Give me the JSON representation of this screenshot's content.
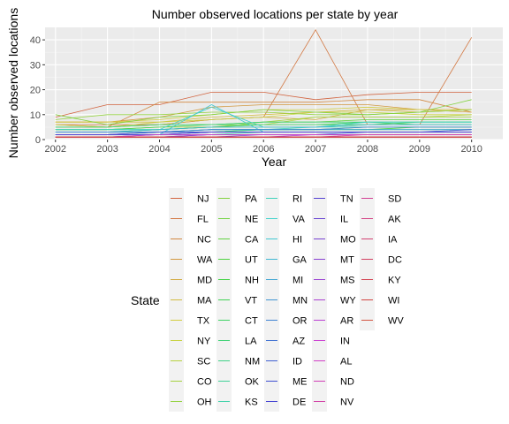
{
  "chart_data": {
    "type": "line",
    "title": "Number observed locations per state by year",
    "xlabel": "Year",
    "ylabel": "Number observed locations",
    "x": [
      2002,
      2003,
      2004,
      2005,
      2006,
      2007,
      2008,
      2009,
      2010
    ],
    "xlim": [
      2001.8,
      2010.6
    ],
    "ylim": [
      0,
      45
    ],
    "yticks": [
      0,
      10,
      20,
      30,
      40
    ],
    "grid": true,
    "legend": {
      "title": "State",
      "placement": "bottom",
      "entries": [
        "NJ",
        "FL",
        "NC",
        "WA",
        "MD",
        "MA",
        "TX",
        "NY",
        "SC",
        "CO",
        "OH",
        "PA",
        "NE",
        "CA",
        "UT",
        "NH",
        "VT",
        "CT",
        "LA",
        "NM",
        "OK",
        "KS",
        "RI",
        "VA",
        "HI",
        "GA",
        "MI",
        "MN",
        "OR",
        "AZ",
        "ID",
        "ME",
        "DE",
        "TN",
        "IL",
        "MO",
        "MT",
        "MS",
        "WY",
        "AR",
        "IN",
        "AL",
        "ND",
        "NV",
        "SD",
        "AK",
        "IA",
        "DC",
        "KY",
        "WI",
        "WV"
      ]
    },
    "series": [
      {
        "name": "NJ",
        "values": [
          9,
          14,
          14,
          19,
          19,
          16,
          18,
          19,
          19
        ]
      },
      {
        "name": "FL",
        "values": [
          6,
          6,
          6,
          8,
          9,
          44,
          6,
          6,
          41
        ]
      },
      {
        "name": "NC",
        "values": [
          6,
          5,
          15,
          15,
          15,
          15,
          16,
          16,
          11
        ]
      },
      {
        "name": "WA",
        "values": [
          7,
          7,
          9,
          13,
          14,
          14,
          14,
          12,
          12
        ]
      },
      {
        "name": "MD",
        "values": [
          5,
          5,
          6,
          8,
          9,
          8,
          12,
          12,
          11
        ]
      },
      {
        "name": "MA",
        "values": [
          7,
          7,
          7,
          9,
          10,
          11,
          12,
          11,
          12
        ]
      },
      {
        "name": "TX",
        "values": [
          7,
          7,
          8,
          10,
          12,
          12,
          13,
          12,
          12
        ]
      },
      {
        "name": "NY",
        "values": [
          6,
          5,
          7,
          8,
          9,
          11,
          11,
          10,
          10
        ]
      },
      {
        "name": "SC",
        "values": [
          3,
          3,
          4,
          5,
          6,
          9,
          9,
          9,
          10
        ]
      },
      {
        "name": "CO",
        "values": [
          4,
          4,
          5,
          5,
          7,
          9,
          9,
          9,
          9
        ]
      },
      {
        "name": "OH",
        "values": [
          8,
          10,
          10,
          11,
          11,
          10,
          10,
          11,
          12
        ]
      },
      {
        "name": "PA",
        "values": [
          10,
          6,
          9,
          10,
          12,
          11,
          10,
          11,
          16
        ]
      },
      {
        "name": "NE",
        "values": [
          3,
          3,
          3,
          4,
          4,
          4,
          5,
          5,
          5
        ]
      },
      {
        "name": "CA",
        "values": [
          5,
          5,
          6,
          6,
          7,
          7,
          8,
          8,
          8
        ]
      },
      {
        "name": "UT",
        "values": [
          4,
          4,
          4,
          5,
          5,
          5,
          6,
          6,
          6
        ]
      },
      {
        "name": "NH",
        "values": [
          2,
          2,
          3,
          3,
          4,
          4,
          4,
          5,
          5
        ]
      },
      {
        "name": "VT",
        "values": [
          4,
          4,
          5,
          6,
          6,
          6,
          6,
          7,
          7
        ]
      },
      {
        "name": "CT",
        "values": [
          3,
          3,
          4,
          5,
          6,
          6,
          7,
          7,
          7
        ]
      },
      {
        "name": "LA",
        "values": [
          5,
          5,
          6,
          6,
          7,
          7,
          7,
          6,
          6
        ]
      },
      {
        "name": "NM",
        "values": [
          3,
          3,
          3,
          3,
          4,
          4,
          4,
          4,
          4
        ]
      },
      {
        "name": "OK",
        "values": [
          2,
          2,
          2,
          3,
          3,
          3,
          3,
          3,
          3
        ]
      },
      {
        "name": "KS",
        "values": [
          2,
          2,
          2,
          2,
          3,
          3,
          3,
          3,
          3
        ]
      },
      {
        "name": "RI",
        "values": [
          3,
          3,
          3,
          4,
          4,
          5,
          5,
          5,
          5
        ]
      },
      {
        "name": "VA",
        "values": [
          4,
          4,
          4,
          13,
          5,
          5,
          7,
          7,
          7
        ]
      },
      {
        "name": "HI",
        "values": [
          2,
          2,
          2,
          14,
          3,
          3,
          3,
          3,
          3
        ]
      },
      {
        "name": "GA",
        "values": [
          3,
          3,
          4,
          5,
          5,
          5,
          6,
          6,
          6
        ]
      },
      {
        "name": "MI",
        "values": [
          3,
          3,
          3,
          4,
          4,
          4,
          4,
          4,
          4
        ]
      },
      {
        "name": "MN",
        "values": [
          2,
          2,
          3,
          3,
          3,
          3,
          3,
          3,
          3
        ]
      },
      {
        "name": "OR",
        "values": [
          3,
          3,
          3,
          4,
          4,
          4,
          5,
          5,
          5
        ]
      },
      {
        "name": "AZ",
        "values": [
          2,
          2,
          2,
          3,
          3,
          3,
          3,
          3,
          3
        ]
      },
      {
        "name": "ID",
        "values": [
          2,
          2,
          2,
          2,
          2,
          2,
          3,
          3,
          3
        ]
      },
      {
        "name": "ME",
        "values": [
          2,
          2,
          2,
          3,
          3,
          3,
          3,
          3,
          4
        ]
      },
      {
        "name": "DE",
        "values": [
          2,
          2,
          3,
          3,
          3,
          3,
          3,
          3,
          3
        ]
      },
      {
        "name": "TN",
        "values": [
          2,
          2,
          2,
          3,
          3,
          3,
          3,
          3,
          3
        ]
      },
      {
        "name": "IL",
        "values": [
          1,
          1,
          1,
          2,
          2,
          2,
          2,
          2,
          2
        ]
      },
      {
        "name": "MO",
        "values": [
          1,
          1,
          2,
          2,
          2,
          2,
          2,
          2,
          2
        ]
      },
      {
        "name": "MT",
        "values": [
          1,
          1,
          1,
          1,
          2,
          2,
          2,
          2,
          2
        ]
      },
      {
        "name": "MS",
        "values": [
          1,
          1,
          1,
          2,
          2,
          2,
          2,
          2,
          2
        ]
      },
      {
        "name": "WY",
        "values": [
          1,
          1,
          1,
          1,
          1,
          1,
          1,
          1,
          1
        ]
      },
      {
        "name": "AR",
        "values": [
          1,
          1,
          1,
          1,
          1,
          2,
          2,
          2,
          2
        ]
      },
      {
        "name": "IN",
        "values": [
          1,
          1,
          1,
          1,
          1,
          1,
          1,
          1,
          1
        ]
      },
      {
        "name": "AL",
        "values": [
          1,
          1,
          2,
          2,
          2,
          2,
          2,
          2,
          2
        ]
      },
      {
        "name": "ND",
        "values": [
          1,
          1,
          1,
          1,
          1,
          1,
          1,
          1,
          1
        ]
      },
      {
        "name": "NV",
        "values": [
          1,
          1,
          1,
          1,
          1,
          1,
          2,
          2,
          2
        ]
      },
      {
        "name": "SD",
        "values": [
          1,
          1,
          1,
          1,
          1,
          1,
          1,
          1,
          1
        ]
      },
      {
        "name": "AK",
        "values": [
          1,
          1,
          1,
          1,
          1,
          1,
          1,
          1,
          1
        ]
      },
      {
        "name": "IA",
        "values": [
          1,
          1,
          1,
          1,
          1,
          1,
          1,
          1,
          1
        ]
      },
      {
        "name": "DC",
        "values": [
          1,
          1,
          1,
          1,
          1,
          1,
          1,
          1,
          1
        ]
      },
      {
        "name": "KY",
        "values": [
          1,
          1,
          1,
          1,
          1,
          1,
          1,
          1,
          1
        ]
      },
      {
        "name": "WI",
        "values": [
          1,
          1,
          1,
          1,
          1,
          1,
          1,
          1,
          1
        ]
      },
      {
        "name": "WV",
        "values": [
          1,
          1,
          1,
          1,
          1,
          1,
          1,
          1,
          1
        ]
      }
    ]
  }
}
